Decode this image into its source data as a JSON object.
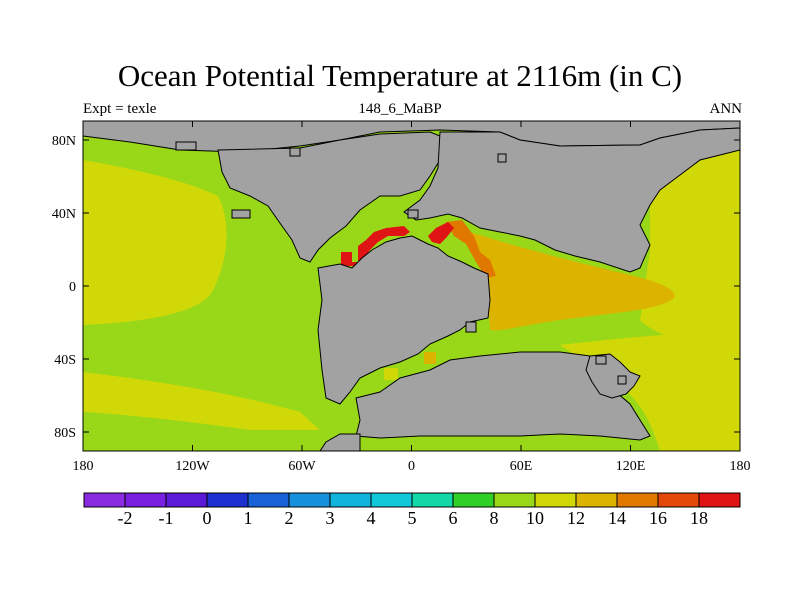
{
  "title": "Ocean Potential Temperature at 2116m (in C)",
  "subtitle_left": "Expt = texle",
  "subtitle_center": "148_6_MaBP",
  "subtitle_right": "ANN",
  "axes": {
    "x_ticks": [
      "180",
      "120W",
      "60W",
      "0",
      "60E",
      "120E",
      "180"
    ],
    "y_ticks": [
      "80N",
      "40N",
      "0",
      "40S",
      "80S"
    ],
    "lon_range": [
      -180,
      180
    ],
    "lat_range": [
      -90,
      90
    ]
  },
  "colorbar": {
    "colors": [
      "#8a2be2",
      "#7a1fe0",
      "#5a1ad8",
      "#1e2fd2",
      "#1a62d8",
      "#168fdc",
      "#10b4dc",
      "#10c8d8",
      "#12d8a8",
      "#30d028",
      "#98d818",
      "#d0d808",
      "#dcb400",
      "#e07800",
      "#e44808",
      "#e01414"
    ],
    "labels": [
      "-2",
      "-1",
      "0",
      "1",
      "2",
      "3",
      "4",
      "5",
      "6",
      "8",
      "10",
      "12",
      "14",
      "16",
      "18"
    ]
  },
  "map_colors": {
    "land": "#a2a2a2",
    "temp_10": "#98d818",
    "temp_12": "#d0d808",
    "temp_14": "#dcb400",
    "temp_16": "#e07800",
    "temp_18": "#e01414"
  }
}
